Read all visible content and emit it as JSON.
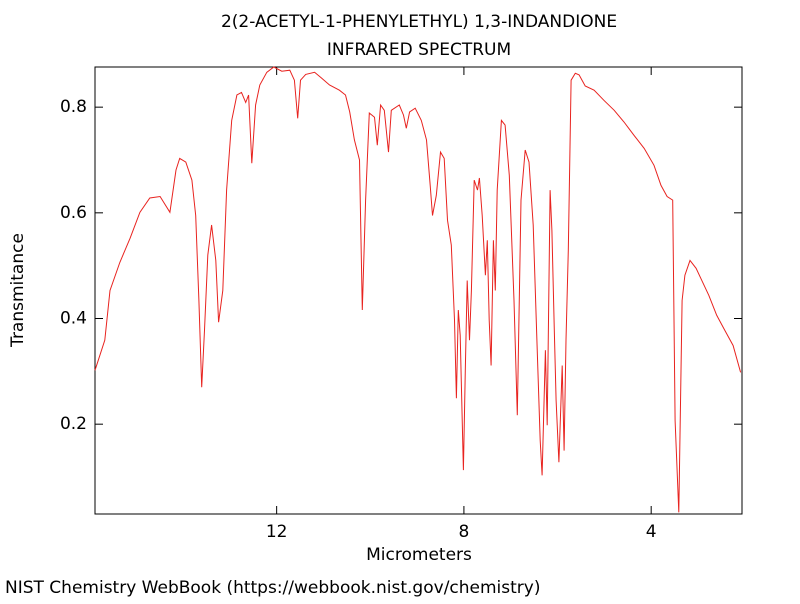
{
  "chart_data": {
    "type": "line",
    "title": "2(2-ACETYL-1-PHENYLETHYL) 1,3-INDANDIONE",
    "subtitle": "INFRARED SPECTRUM",
    "x_label": "Micrometers",
    "y_label": "Transmitance",
    "footer": "NIST Chemistry WebBook (https://webbook.nist.gov/chemistry)",
    "color": "#e8231f",
    "xlim": [
      15.88,
      2.06
    ],
    "xticks": [
      12,
      8,
      4
    ],
    "ylim": [
      0.03,
      0.876
    ],
    "yticks": [
      0.2,
      0.4,
      0.6,
      0.8
    ],
    "x": [
      15.88,
      15.67,
      15.56,
      15.35,
      15.13,
      14.92,
      14.71,
      14.49,
      14.28,
      14.15,
      14.07,
      13.94,
      13.81,
      13.73,
      13.66,
      13.6,
      13.54,
      13.47,
      13.39,
      13.3,
      13.24,
      13.15,
      13.07,
      12.96,
      12.85,
      12.75,
      12.66,
      12.6,
      12.53,
      12.45,
      12.36,
      12.21,
      12.06,
      11.89,
      11.72,
      11.62,
      11.55,
      11.49,
      11.38,
      11.19,
      11.04,
      10.87,
      10.66,
      10.53,
      10.44,
      10.34,
      10.23,
      10.17,
      10.1,
      10.02,
      9.91,
      9.85,
      9.78,
      9.7,
      9.61,
      9.55,
      9.38,
      9.29,
      9.23,
      9.16,
      9.04,
      8.91,
      8.8,
      8.72,
      8.67,
      8.59,
      8.5,
      8.42,
      8.35,
      8.27,
      8.2,
      8.16,
      8.12,
      8.08,
      8.01,
      7.97,
      7.93,
      7.88,
      7.84,
      7.78,
      7.71,
      7.67,
      7.61,
      7.54,
      7.5,
      7.46,
      7.42,
      7.37,
      7.33,
      7.29,
      7.2,
      7.12,
      7.03,
      6.93,
      6.86,
      6.78,
      6.69,
      6.61,
      6.52,
      6.44,
      6.37,
      6.33,
      6.26,
      6.22,
      6.16,
      6.12,
      6.07,
      6.03,
      5.97,
      5.9,
      5.86,
      5.82,
      5.77,
      5.71,
      5.62,
      5.54,
      5.41,
      5.22,
      5.01,
      4.79,
      4.58,
      4.37,
      4.15,
      3.94,
      3.79,
      3.66,
      3.54,
      3.49,
      3.41,
      3.34,
      3.28,
      3.17,
      3.04,
      2.94,
      2.77,
      2.6,
      2.43,
      2.25,
      2.09
    ],
    "values": [
      0.302,
      0.359,
      0.453,
      0.506,
      0.552,
      0.601,
      0.628,
      0.631,
      0.601,
      0.681,
      0.703,
      0.696,
      0.662,
      0.595,
      0.434,
      0.27,
      0.378,
      0.52,
      0.577,
      0.51,
      0.393,
      0.453,
      0.643,
      0.775,
      0.823,
      0.828,
      0.809,
      0.823,
      0.694,
      0.804,
      0.842,
      0.866,
      0.876,
      0.868,
      0.87,
      0.851,
      0.779,
      0.851,
      0.862,
      0.866,
      0.855,
      0.842,
      0.832,
      0.823,
      0.791,
      0.738,
      0.7,
      0.416,
      0.624,
      0.789,
      0.781,
      0.728,
      0.804,
      0.794,
      0.715,
      0.794,
      0.804,
      0.785,
      0.76,
      0.791,
      0.798,
      0.775,
      0.738,
      0.652,
      0.595,
      0.633,
      0.715,
      0.703,
      0.586,
      0.539,
      0.397,
      0.249,
      0.416,
      0.368,
      0.113,
      0.302,
      0.472,
      0.359,
      0.453,
      0.662,
      0.643,
      0.666,
      0.595,
      0.482,
      0.548,
      0.397,
      0.311,
      0.548,
      0.453,
      0.643,
      0.775,
      0.766,
      0.671,
      0.434,
      0.217,
      0.624,
      0.719,
      0.696,
      0.577,
      0.359,
      0.169,
      0.103,
      0.34,
      0.198,
      0.643,
      0.567,
      0.378,
      0.245,
      0.128,
      0.311,
      0.15,
      0.359,
      0.529,
      0.851,
      0.864,
      0.861,
      0.84,
      0.832,
      0.813,
      0.794,
      0.772,
      0.747,
      0.722,
      0.69,
      0.652,
      0.631,
      0.624,
      0.207,
      0.033,
      0.434,
      0.482,
      0.51,
      0.495,
      0.476,
      0.444,
      0.406,
      0.378,
      0.349,
      0.298
    ]
  }
}
